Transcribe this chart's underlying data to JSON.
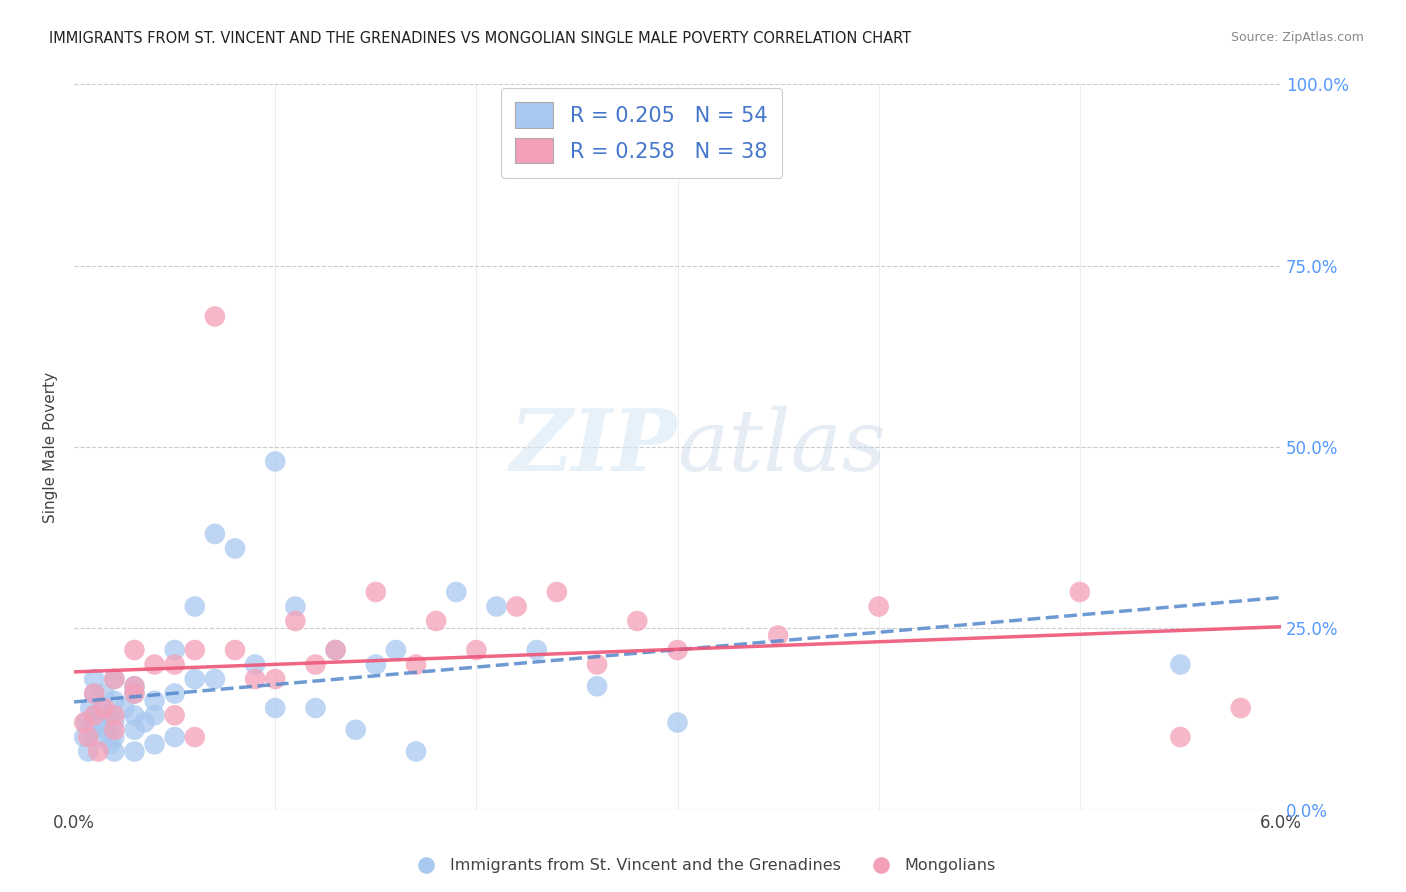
{
  "title": "IMMIGRANTS FROM ST. VINCENT AND THE GRENADINES VS MONGOLIAN SINGLE MALE POVERTY CORRELATION CHART",
  "source": "Source: ZipAtlas.com",
  "ylabel": "Single Male Poverty",
  "xlim": [
    0.0,
    0.06
  ],
  "ylim": [
    0.0,
    1.0
  ],
  "xticks": [
    0.0,
    0.01,
    0.02,
    0.03,
    0.04,
    0.05,
    0.06
  ],
  "xticklabels": [
    "0.0%",
    "",
    "",
    "",
    "",
    "",
    "6.0%"
  ],
  "yticks": [
    0.0,
    0.25,
    0.5,
    0.75,
    1.0
  ],
  "right_yticklabels": [
    "0.0%",
    "25.0%",
    "50.0%",
    "75.0%",
    "100.0%"
  ],
  "watermark_zip": "ZIP",
  "watermark_atlas": "atlas",
  "blue_color": "#a8c8f0",
  "pink_color": "#f4a0b8",
  "blue_line_color": "#5588cc",
  "pink_line_color": "#ee5577",
  "legend_label1": "R = 0.205   N = 54",
  "legend_label2": "R = 0.258   N = 38",
  "series1_label": "Immigrants from St. Vincent and the Grenadines",
  "series2_label": "Mongolians",
  "blue_x": [
    0.0005,
    0.0006,
    0.0007,
    0.0008,
    0.0009,
    0.001,
    0.001,
    0.001,
    0.0012,
    0.0013,
    0.0014,
    0.0015,
    0.0016,
    0.0017,
    0.0018,
    0.002,
    0.002,
    0.002,
    0.002,
    0.002,
    0.0025,
    0.003,
    0.003,
    0.003,
    0.003,
    0.003,
    0.0035,
    0.004,
    0.004,
    0.004,
    0.005,
    0.005,
    0.005,
    0.006,
    0.006,
    0.007,
    0.007,
    0.008,
    0.009,
    0.01,
    0.01,
    0.011,
    0.012,
    0.013,
    0.014,
    0.015,
    0.016,
    0.017,
    0.019,
    0.021,
    0.023,
    0.026,
    0.03,
    0.055
  ],
  "blue_y": [
    0.1,
    0.12,
    0.08,
    0.14,
    0.11,
    0.13,
    0.16,
    0.18,
    0.12,
    0.1,
    0.14,
    0.16,
    0.11,
    0.13,
    0.09,
    0.15,
    0.12,
    0.18,
    0.1,
    0.08,
    0.14,
    0.13,
    0.16,
    0.08,
    0.11,
    0.17,
    0.12,
    0.15,
    0.09,
    0.13,
    0.16,
    0.22,
    0.1,
    0.18,
    0.28,
    0.18,
    0.38,
    0.36,
    0.2,
    0.48,
    0.14,
    0.28,
    0.14,
    0.22,
    0.11,
    0.2,
    0.22,
    0.08,
    0.3,
    0.28,
    0.22,
    0.17,
    0.12,
    0.2
  ],
  "pink_x": [
    0.0005,
    0.0007,
    0.001,
    0.001,
    0.0012,
    0.0015,
    0.002,
    0.002,
    0.002,
    0.003,
    0.003,
    0.003,
    0.004,
    0.005,
    0.005,
    0.006,
    0.006,
    0.007,
    0.008,
    0.009,
    0.01,
    0.011,
    0.012,
    0.013,
    0.015,
    0.017,
    0.018,
    0.02,
    0.022,
    0.024,
    0.026,
    0.028,
    0.03,
    0.035,
    0.04,
    0.05,
    0.055,
    0.058
  ],
  "pink_y": [
    0.12,
    0.1,
    0.13,
    0.16,
    0.08,
    0.14,
    0.11,
    0.18,
    0.13,
    0.16,
    0.22,
    0.17,
    0.2,
    0.13,
    0.2,
    0.1,
    0.22,
    0.68,
    0.22,
    0.18,
    0.18,
    0.26,
    0.2,
    0.22,
    0.3,
    0.2,
    0.26,
    0.22,
    0.28,
    0.3,
    0.2,
    0.26,
    0.22,
    0.24,
    0.28,
    0.3,
    0.1,
    0.14
  ],
  "background_color": "#ffffff",
  "grid_color": "#cccccc"
}
